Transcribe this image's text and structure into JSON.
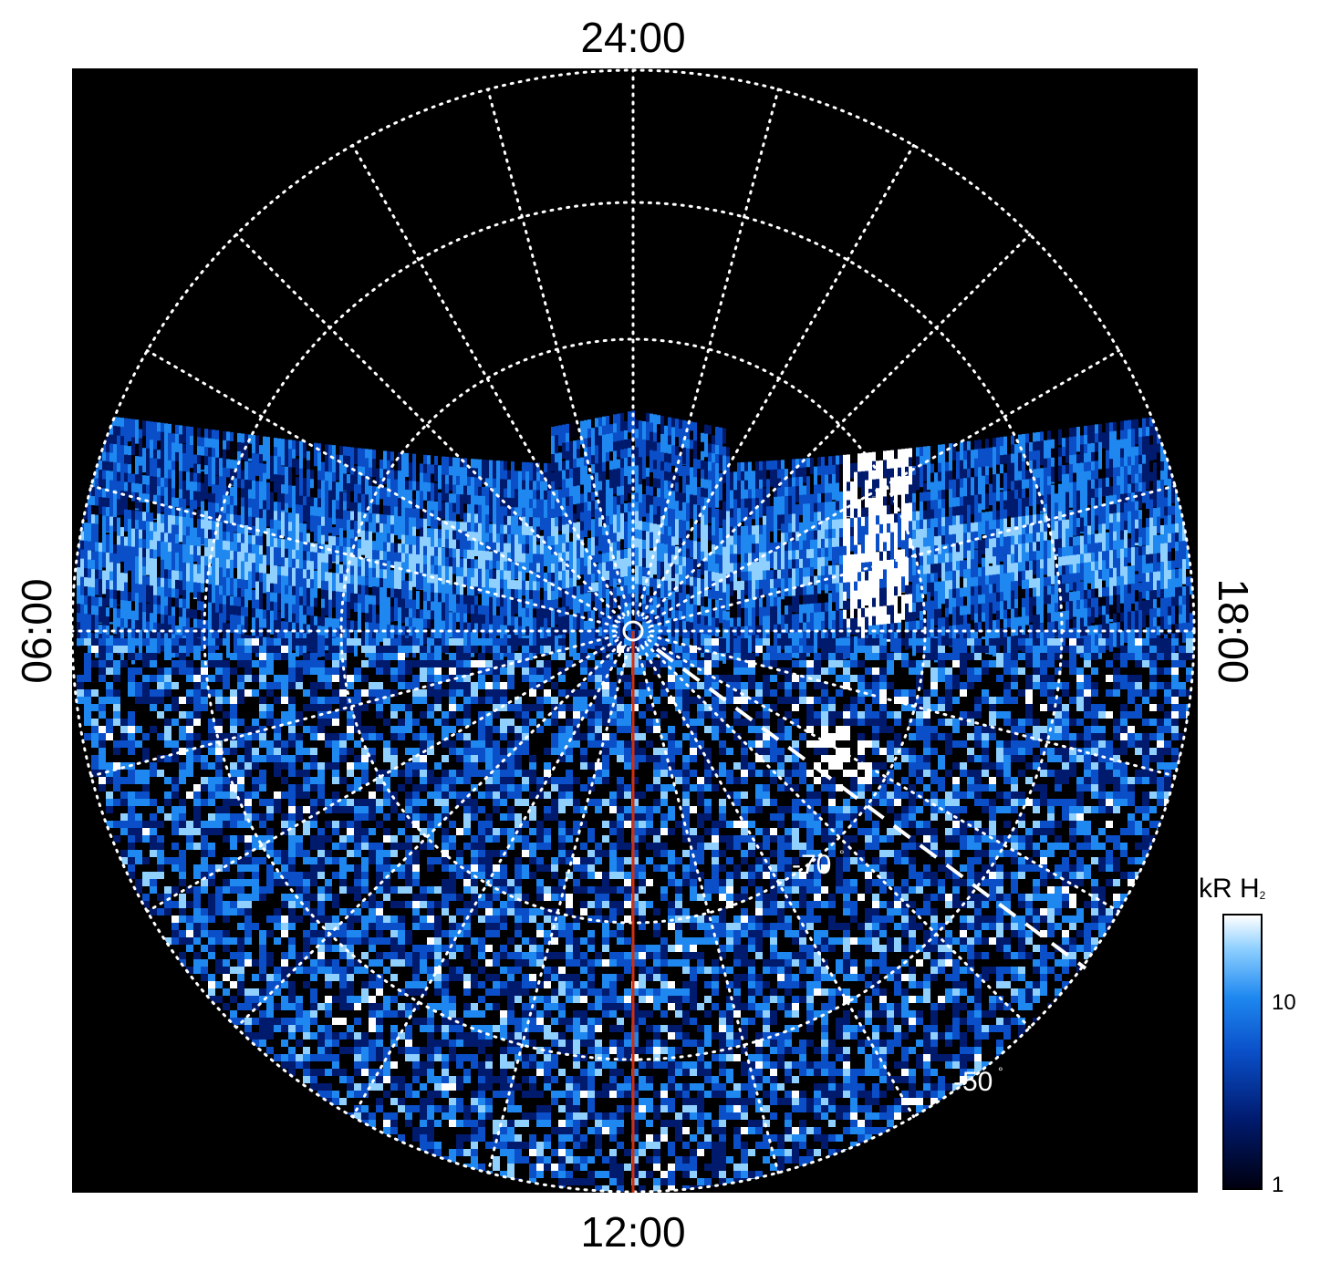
{
  "labels": {
    "top": "24:00",
    "bottom": "12:00",
    "left": "06:00",
    "right": "18:00"
  },
  "latitude_labels": [
    "-70",
    "-50"
  ],
  "colorbar": {
    "title": "kR H",
    "title_sub": "2",
    "ticks": [
      "10",
      "1"
    ],
    "colors": [
      "#000010",
      "#001a6e",
      "#0a4fc8",
      "#1e88f0",
      "#8fd0ff",
      "#ffffff"
    ]
  },
  "colors": {
    "background": "#000000",
    "grid": "#ffffff",
    "meridian": "#d03010"
  }
}
